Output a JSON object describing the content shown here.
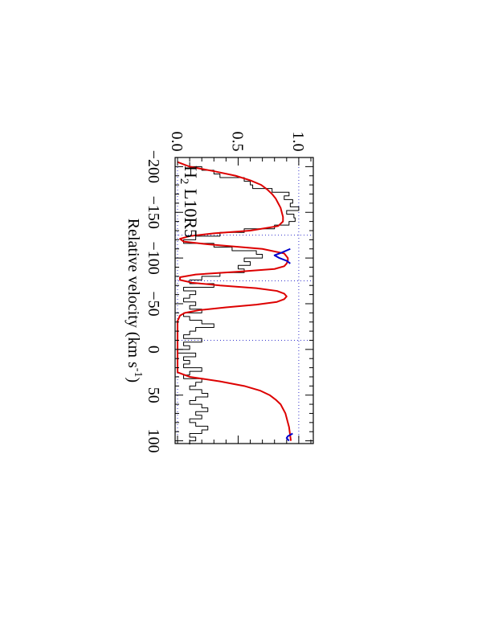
{
  "chart_data": {
    "type": "line",
    "orientation": "rotated-90-clockwise",
    "xlabel": "Relative velocity (km s",
    "xlabel_sup": "-1",
    "xlabel_close": ")",
    "ylabel": "",
    "annotation": {
      "base": "H",
      "sub": "2",
      "rest": " L10R5"
    },
    "xlim": [
      -210,
      103
    ],
    "ylim": [
      -0.02,
      1.12
    ],
    "xticks": [
      -200,
      -150,
      -100,
      -50,
      0,
      50,
      100
    ],
    "xtick_labels": [
      "−200",
      "−150",
      "−100",
      "−50",
      "0",
      "50",
      "100"
    ],
    "yticks": [
      0.0,
      0.5,
      1.0
    ],
    "ytick_labels": [
      "0.0",
      "0.5",
      "1.0"
    ],
    "reference_lines": {
      "continuum": 1.0,
      "zero": 0.0,
      "component_velocities": [
        -125,
        -75,
        -10
      ]
    },
    "colors": {
      "data": "#000000",
      "model": "#dd0000",
      "blend": "#0000cc",
      "reference": "#3333cc"
    },
    "series": [
      {
        "style": "step",
        "color": "#000000",
        "x": [
          -205,
          -200,
          -196,
          -192,
          -188,
          -184,
          -180,
          -176,
          -172,
          -168,
          -164,
          -160,
          -156,
          -152,
          -148,
          -144,
          -140,
          -136,
          -132,
          -128,
          -124,
          -120,
          -116,
          -112,
          -108,
          -104,
          -100,
          -96,
          -92,
          -88,
          -84,
          -80,
          -76,
          -72,
          -68,
          -64,
          -60,
          -56,
          -52,
          -48,
          -44,
          -40,
          -36,
          -32,
          -28,
          -24,
          -20,
          -16,
          -12,
          -8,
          -4,
          0,
          4,
          8,
          12,
          16,
          20,
          24,
          28,
          32,
          36,
          40,
          44,
          48,
          52,
          56,
          60,
          64,
          68,
          72,
          76,
          80,
          84,
          88,
          92,
          96,
          100
        ],
        "y": [
          0.1,
          0.2,
          0.3,
          0.35,
          0.55,
          0.6,
          0.62,
          0.78,
          0.92,
          0.88,
          0.95,
          0.93,
          1.0,
          0.9,
          0.96,
          0.97,
          0.92,
          0.8,
          0.55,
          0.35,
          0.15,
          0.05,
          0.3,
          0.45,
          0.65,
          0.7,
          0.55,
          0.6,
          0.5,
          0.55,
          0.35,
          0.2,
          0.1,
          0.3,
          0.05,
          0.15,
          0.1,
          0.05,
          0.15,
          0.1,
          0.2,
          0.05,
          0.1,
          0.2,
          0.3,
          0.15,
          0.1,
          0.05,
          0.2,
          0.05,
          0.1,
          0.0,
          0.15,
          0.05,
          0.1,
          0.05,
          0.2,
          0.1,
          0.05,
          0.2,
          0.15,
          0.1,
          0.2,
          0.25,
          0.15,
          0.1,
          0.2,
          0.25,
          0.15,
          0.2,
          0.1,
          0.15,
          0.25,
          0.2,
          0.1,
          0.15,
          0.1
        ]
      },
      {
        "style": "line",
        "color": "#dd0000",
        "x": [
          -205,
          -200,
          -195,
          -190,
          -185,
          -180,
          -175,
          -170,
          -165,
          -160,
          -155,
          -150,
          -145,
          -140,
          -135,
          -130,
          -127,
          -124,
          -121,
          -118,
          -115,
          -110,
          -105,
          -100,
          -97,
          -94,
          -91,
          -88,
          -85,
          -82,
          -79,
          -76,
          -73,
          -70,
          -67,
          -64,
          -61,
          -58,
          -55,
          -52,
          -49,
          -46,
          -43,
          -40,
          -37,
          -34,
          -31,
          -28,
          -25,
          -22,
          -19,
          -16,
          -13,
          -10,
          -7,
          -4,
          0,
          5,
          10,
          15,
          20,
          25,
          30,
          35,
          40,
          45,
          50,
          55,
          60,
          65,
          70,
          75,
          80,
          85,
          90,
          95,
          100
        ],
        "y": [
          0.0,
          0.1,
          0.3,
          0.48,
          0.6,
          0.69,
          0.74,
          0.78,
          0.81,
          0.83,
          0.85,
          0.86,
          0.87,
          0.87,
          0.83,
          0.6,
          0.3,
          0.1,
          0.02,
          0.05,
          0.25,
          0.7,
          0.88,
          0.91,
          0.91,
          0.9,
          0.88,
          0.8,
          0.5,
          0.15,
          0.02,
          0.02,
          0.12,
          0.35,
          0.65,
          0.82,
          0.88,
          0.9,
          0.88,
          0.82,
          0.65,
          0.4,
          0.18,
          0.06,
          0.02,
          0.01,
          0.0,
          0.0,
          0.0,
          0.0,
          0.0,
          0.0,
          0.0,
          0.0,
          0.0,
          0.0,
          0.0,
          0.0,
          0.0,
          0.0,
          0.0,
          0.0,
          0.1,
          0.35,
          0.55,
          0.68,
          0.76,
          0.81,
          0.85,
          0.87,
          0.89,
          0.9,
          0.91,
          0.92,
          0.925,
          0.93,
          0.935
        ]
      },
      {
        "style": "line",
        "color": "#0000cc",
        "x": [
          -110,
          -106,
          -103,
          -100,
          -97,
          -94
        ],
        "y": [
          0.93,
          0.86,
          0.8,
          0.84,
          0.9,
          0.93
        ]
      },
      {
        "style": "line",
        "color": "#0000cc",
        "x": [
          92,
          95,
          97,
          100
        ],
        "y": [
          0.95,
          0.91,
          0.9,
          0.92
        ]
      }
    ]
  }
}
